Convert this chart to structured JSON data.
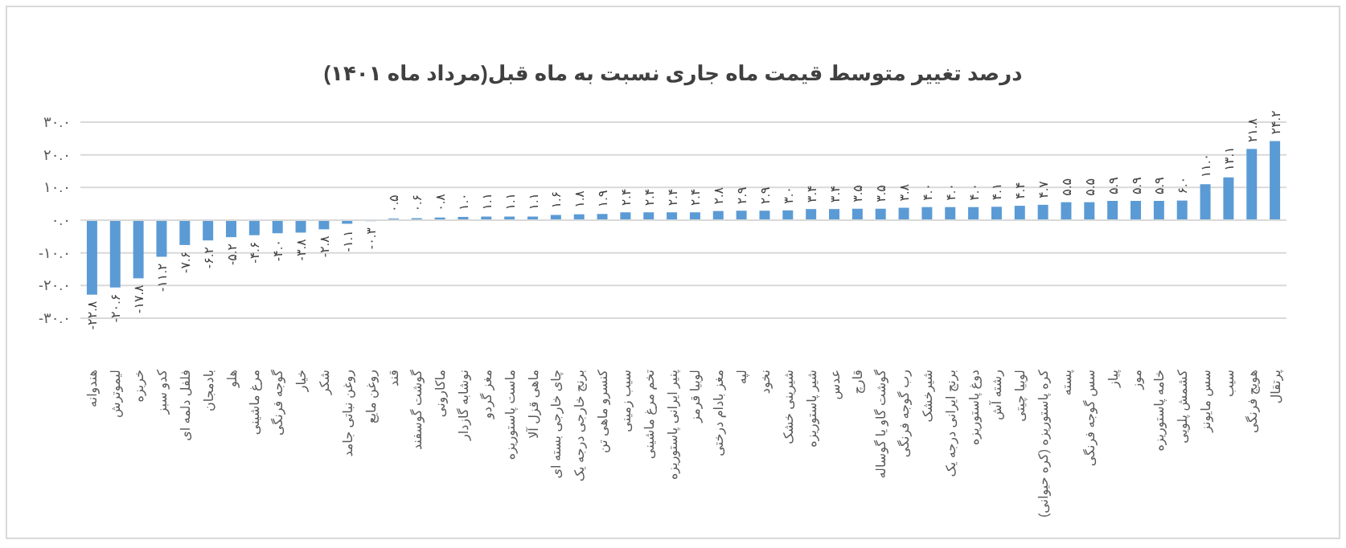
{
  "chart_data": {
    "type": "bar",
    "title": "درصد تغییر متوسط قیمت ماه جاری نسبت به ماه قبل(مرداد ماه ۱۴۰۱)",
    "categories": [
      "هندوانه",
      "لیموترش",
      "خربزه",
      "کدو سبز",
      "فلفل دلمه ای",
      "بادمجان",
      "هلو",
      "مرغ ماشینی",
      "گوجه فرنگی",
      "خیار",
      "شکر",
      "روغن نباتی جامد",
      "روغن مایع",
      "قند",
      "گوشت گوسفند",
      "ماکارونی",
      "نوشابه گازدار",
      "مغز گردو",
      "ماست پاستوریزه",
      "ماهی قزل آلا",
      "چای خارجی بسته ای",
      "برنج خارجی درجه یک",
      "کنسرو ماهی تن",
      "سیب زمینی",
      "تخم مرغ ماشینی",
      "پنیر ایرانی پاستوریزه",
      "لوبیا قرمز",
      "مغز بادام درختی",
      "لپه",
      "نخود",
      "شیرینی خشک",
      "شیر پاستوریزه",
      "عدس",
      "قارچ",
      "گوشت گاو یا گوساله",
      "رب گوجه فرنگی",
      "شیرخشک",
      "برنج ایرانی درجه یک",
      "دوغ پاستوریزه",
      "رشته آش",
      "لوبیا چیتی",
      "کره پاستوریزه (کره حیوانی)",
      "پسته",
      "سس گوجه فرنگی",
      "پیاز",
      "موز",
      "خامه پاستوریزه",
      "کشمش پلویی",
      "سس مایونز",
      "سیب",
      "هویج فرنگی",
      "پرتقال"
    ],
    "values": [
      -22.8,
      -20.6,
      -17.8,
      -11.2,
      -7.6,
      -6.2,
      -5.2,
      -4.6,
      -4.0,
      -3.8,
      -2.8,
      -1.1,
      -0.3,
      0.5,
      0.6,
      0.8,
      1.0,
      1.1,
      1.1,
      1.1,
      1.6,
      1.8,
      1.9,
      2.4,
      2.4,
      2.4,
      2.4,
      2.8,
      2.9,
      2.9,
      3.0,
      3.4,
      3.4,
      3.5,
      3.5,
      3.8,
      4.0,
      4.0,
      4.0,
      4.1,
      4.4,
      4.7,
      5.5,
      5.5,
      5.9,
      5.9,
      5.9,
      6.0,
      11.0,
      13.1,
      21.8,
      24.2
    ],
    "value_labels": [
      "-۲۲.۸",
      "-۲۰.۶",
      "-۱۷.۸",
      "-۱۱.۲",
      "-۷.۶",
      "-۶.۲",
      "-۵.۲",
      "-۴.۶",
      "-۴.۰",
      "-۳.۸",
      "-۲.۸",
      "-۱.۱",
      "-۰.۳",
      "۰.۵",
      "۰.۶",
      "۰.۸",
      "۱.۰",
      "۱.۱",
      "۱.۱",
      "۱.۱",
      "۱.۶",
      "۱.۸",
      "۱.۹",
      "۲.۴",
      "۲.۴",
      "۲.۴",
      "۲.۴",
      "۲.۸",
      "۲.۹",
      "۲.۹",
      "۳.۰",
      "۳.۴",
      "۳.۴",
      "۳.۵",
      "۳.۵",
      "۳.۸",
      "۴.۰",
      "۴.۰",
      "۴.۰",
      "۴.۱",
      "۴.۴",
      "۴.۷",
      "۵.۵",
      "۵.۵",
      "۵.۹",
      "۵.۹",
      "۵.۹",
      "۶.۰",
      "۱۱.۰",
      "۱۳.۱",
      "۲۱.۸",
      "۲۴.۲"
    ],
    "color": "#5b9bd5",
    "grid": "y",
    "ylim": [
      -30,
      30
    ],
    "yticks": [
      {
        "value": -30,
        "label": "-۳۰.۰"
      },
      {
        "value": -20,
        "label": "-۲۰.۰"
      },
      {
        "value": -10,
        "label": "-۱۰.۰"
      },
      {
        "value": 0,
        "label": "۰.۰"
      },
      {
        "value": 10,
        "label": "۱۰.۰"
      },
      {
        "value": 20,
        "label": "۲۰.۰"
      },
      {
        "value": 30,
        "label": "۳۰.۰"
      }
    ]
  }
}
